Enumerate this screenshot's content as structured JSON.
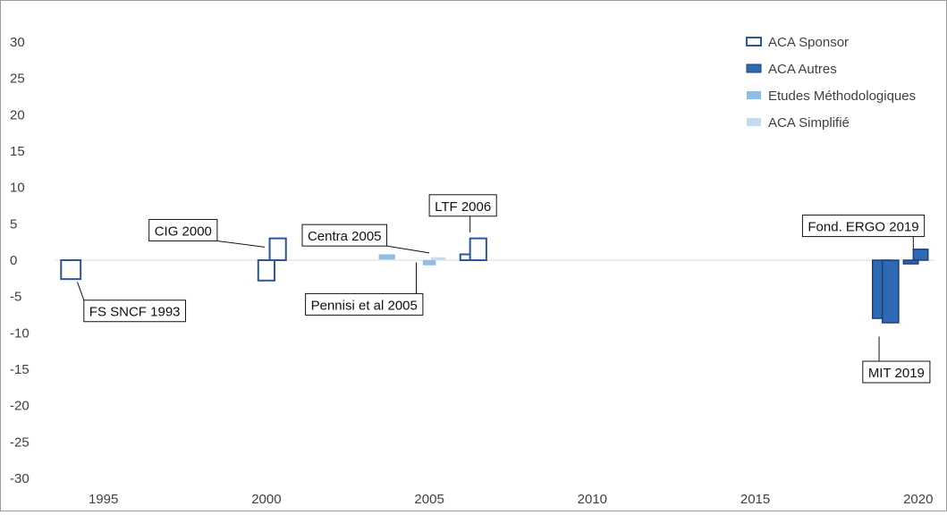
{
  "chart_data": {
    "type": "bar",
    "xlim": [
      1993.5,
      2020.5
    ],
    "ylim": [
      -30,
      30
    ],
    "yticks": [
      30,
      25,
      20,
      15,
      10,
      5,
      0,
      -5,
      -10,
      -15,
      -20,
      -25,
      -30
    ],
    "xticks": [
      1995,
      2000,
      2005,
      2010,
      2015,
      2020
    ],
    "grid": false,
    "legend_position": "top-right",
    "series": [
      {
        "name": "ACA Sponsor",
        "style": "outline",
        "color": "#2e5597",
        "bars": [
          {
            "x": 1993.7,
            "x2": 1994.3,
            "y0": 0,
            "y1": -2.6
          },
          {
            "x": 1999.75,
            "x2": 2000.25,
            "y0": 0,
            "y1": -2.8
          },
          {
            "x": 2000.1,
            "x2": 2000.6,
            "y0": 0,
            "y1": 3.0
          },
          {
            "x": 2005.95,
            "x2": 2006.45,
            "y0": 0,
            "y1": 0.8
          },
          {
            "x": 2006.25,
            "x2": 2006.75,
            "y0": 0,
            "y1": 3.0
          }
        ]
      },
      {
        "name": "ACA Autres",
        "style": "filled",
        "color": "#2e69b3",
        "stroke": "#1f3f75",
        "bars": [
          {
            "x": 2018.6,
            "x2": 2019.1,
            "y0": 0,
            "y1": -8.0
          },
          {
            "x": 2018.9,
            "x2": 2019.4,
            "y0": 0,
            "y1": -8.6
          },
          {
            "x": 2019.55,
            "x2": 2020.0,
            "y0": 0,
            "y1": -0.5
          },
          {
            "x": 2019.85,
            "x2": 2020.3,
            "y0": 0,
            "y1": 1.5
          }
        ]
      },
      {
        "name": "Etudes Méthodologiques",
        "style": "filled",
        "color": "#8fbde6",
        "bars": [
          {
            "x": 2003.45,
            "x2": 2003.95,
            "y0": 0.1,
            "y1": 0.8
          },
          {
            "x": 2004.8,
            "x2": 2005.2,
            "y0": 0,
            "y1": -0.7
          }
        ]
      },
      {
        "name": "ACA Simplifié",
        "style": "filled",
        "color": "#c4dbf2",
        "bars": [
          {
            "x": 2005.05,
            "x2": 2005.5,
            "y0": 0,
            "y1": 0.4
          }
        ]
      }
    ],
    "annotations": [
      {
        "text": "FS SNCF 1993",
        "target": [
          1994.2,
          -3.0
        ],
        "box": [
          1994.4,
          -5.5
        ],
        "anchor": "left"
      },
      {
        "text": "CIG 2000",
        "target": [
          1999.95,
          1.8
        ],
        "box": [
          1996.4,
          5.6
        ],
        "anchor": "left"
      },
      {
        "text": "Centra 2005",
        "target": [
          2005.0,
          1.0
        ],
        "box": [
          2001.1,
          4.9
        ],
        "anchor": "left"
      },
      {
        "text": "Pennisi et al 2005",
        "target": [
          2004.6,
          -0.3
        ],
        "box": [
          2001.2,
          -4.6
        ],
        "anchor": "left"
      },
      {
        "text": "LTF 2006",
        "target": [
          2006.25,
          3.8
        ],
        "box": [
          2005.0,
          9.0
        ],
        "anchor": "left"
      },
      {
        "text": "Fond. ERGO 2019",
        "target": [
          2019.85,
          1.6
        ],
        "box": [
          2016.45,
          6.2
        ],
        "anchor": "left"
      },
      {
        "text": "MIT 2019",
        "target": [
          2018.8,
          -10.5
        ],
        "box": [
          2018.3,
          -13.9
        ],
        "anchor": "left"
      }
    ]
  }
}
